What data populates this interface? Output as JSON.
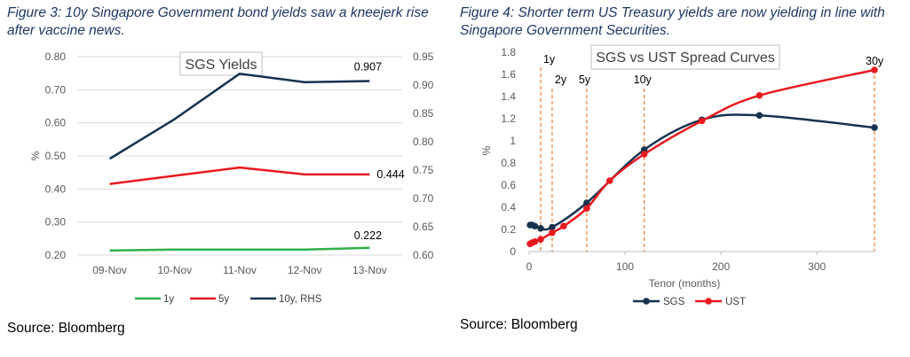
{
  "figure3": {
    "caption": "Figure 3: 10y Singapore Government bond yields saw a kneejerk rise after vaccine news.",
    "source": "Source: Bloomberg"
  },
  "figure4": {
    "caption": "Figure 4: Shorter term US Treasury yields are now yielding in line with Singapore Government Securities.",
    "source": "Source: Bloomberg"
  },
  "chart_data": [
    {
      "type": "line",
      "title": "SGS Yields",
      "ylabel": "%",
      "xlabel": "",
      "categories": [
        "09-Nov",
        "10-Nov",
        "11-Nov",
        "12-Nov",
        "13-Nov"
      ],
      "ylim": [
        0.2,
        0.8
      ],
      "yticks": [
        "0.20",
        "0.30",
        "0.40",
        "0.50",
        "0.60",
        "0.70",
        "0.80"
      ],
      "y2lim": [
        0.6,
        0.95
      ],
      "y2ticks": [
        "0.60",
        "0.65",
        "0.70",
        "0.75",
        "0.80",
        "0.85",
        "0.90",
        "0.95"
      ],
      "grid": true,
      "legend_position": "bottom",
      "series": [
        {
          "name": "1y",
          "axis": "left",
          "color": "#2fb04a",
          "values": [
            0.214,
            0.217,
            0.217,
            0.217,
            0.222
          ]
        },
        {
          "name": "5y",
          "axis": "left",
          "color": "#e8191e",
          "values": [
            0.415,
            0.44,
            0.465,
            0.444,
            0.444
          ]
        },
        {
          "name": "10y, RHS",
          "axis": "right",
          "color": "#16324f",
          "values": [
            0.77,
            0.84,
            0.92,
            0.905,
            0.907
          ]
        }
      ],
      "data_labels": [
        {
          "series": "1y",
          "index": 4,
          "text": "0.222"
        },
        {
          "series": "5y",
          "index": 4,
          "text": "0.444"
        },
        {
          "series": "10y, RHS",
          "index": 4,
          "text": "0.907"
        }
      ]
    },
    {
      "type": "line",
      "title": "SGS vs UST Spread Curves",
      "xlabel": "Tenor (months)",
      "ylabel": "%",
      "xlim": [
        0,
        360
      ],
      "xticks": [
        0,
        100,
        200,
        300
      ],
      "ylim": [
        0,
        1.8
      ],
      "yticks": [
        "0",
        "0.2",
        "0.4",
        "0.6",
        "0.8",
        "1",
        "1.2",
        "1.4",
        "1.6",
        "1.8"
      ],
      "grid": false,
      "legend_position": "bottom",
      "series": [
        {
          "name": "SGS",
          "color": "#16324f",
          "x": [
            1,
            3,
            6,
            12,
            24,
            60,
            120,
            180,
            240,
            360
          ],
          "y": [
            0.24,
            0.24,
            0.23,
            0.21,
            0.22,
            0.44,
            0.92,
            1.19,
            1.23,
            1.12
          ]
        },
        {
          "name": "UST",
          "color": "#e8191e",
          "x": [
            1,
            3,
            6,
            12,
            24,
            36,
            60,
            84,
            120,
            180,
            240,
            360
          ],
          "y": [
            0.07,
            0.08,
            0.09,
            0.11,
            0.17,
            0.23,
            0.39,
            0.64,
            0.88,
            1.18,
            1.41,
            1.64
          ]
        }
      ],
      "reference_lines": [
        {
          "x": 12,
          "label": "1y"
        },
        {
          "x": 24,
          "label": "2y"
        },
        {
          "x": 60,
          "label": "5y"
        },
        {
          "x": 120,
          "label": "10y"
        },
        {
          "x": 360,
          "label": "30y"
        }
      ],
      "reference_line_color": "#ed7d31"
    }
  ]
}
